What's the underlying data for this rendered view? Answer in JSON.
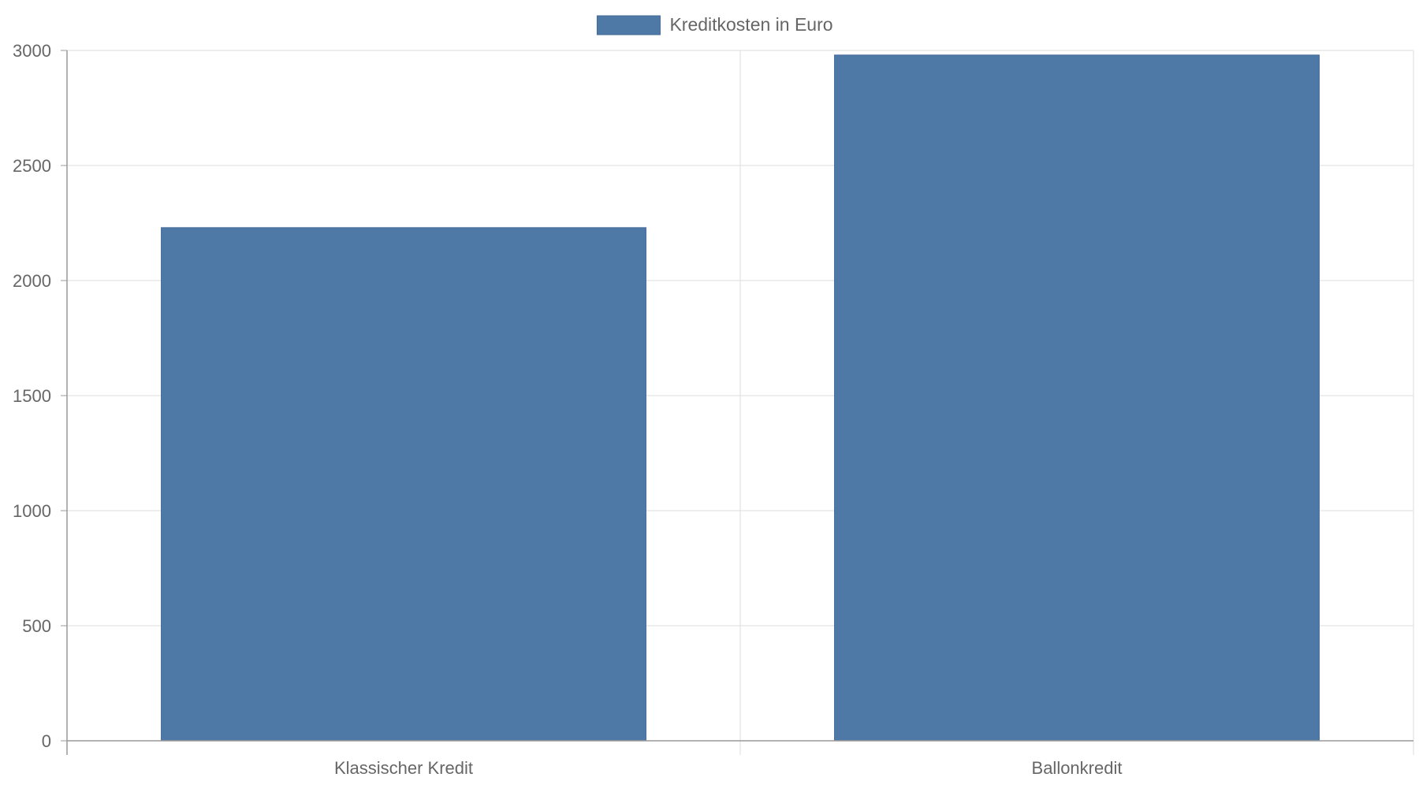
{
  "chart_data": {
    "type": "bar",
    "categories": [
      "Klassischer Kredit",
      "Ballonkredit"
    ],
    "series": [
      {
        "name": "Kreditkosten in Euro",
        "values": [
          2230,
          2980
        ]
      }
    ],
    "ylim": [
      0,
      3000
    ],
    "yticks": [
      "0",
      "500",
      "1000",
      "1500",
      "2000",
      "2500",
      "3000"
    ],
    "grid": true,
    "legend_position": "top-center",
    "colors": {
      "bar_fill": "#4e79a7",
      "bar_stroke": "#43699a",
      "grid": "#dddddd",
      "axis": "#999999",
      "text": "#666666"
    }
  }
}
